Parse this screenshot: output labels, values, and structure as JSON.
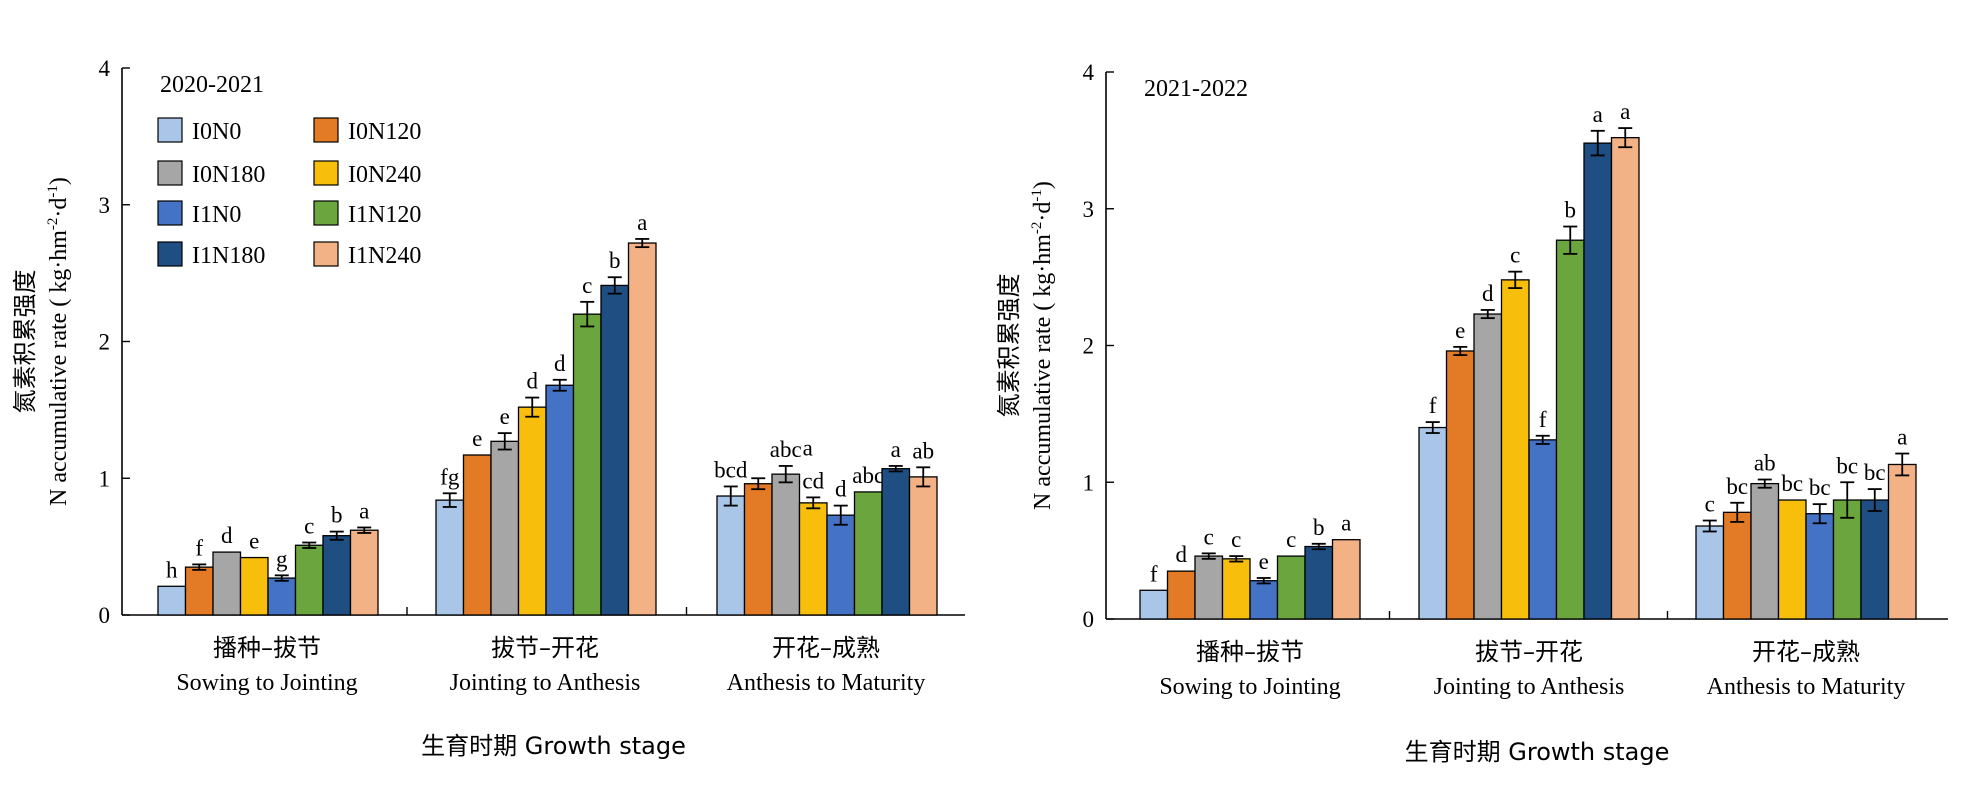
{
  "colors": {
    "I0N0": "#a9c6e8",
    "I0N120": "#e37b26",
    "I0N180": "#a6a6a6",
    "I0N240": "#f7bf0b",
    "I1N0": "#4472c4",
    "I1N120": "#6aa63d",
    "I1N180": "#1e4e82",
    "I1N240": "#f2b285"
  },
  "chart_data": [
    {
      "type": "bar",
      "panel_label": "2020-2021",
      "ylabel_cn": "氮素积累强度",
      "ylabel_en_main": "N accumulative rate ( kg·hm",
      "ylabel_en_sup1": "-2",
      "ylabel_en_mid": "·d",
      "ylabel_en_sup2": "-1",
      "ylabel_en_end": ")",
      "xlabel": "生育时期  Growth stage",
      "ylim": [
        0,
        4
      ],
      "yticks": [
        "0",
        "1",
        "2",
        "3",
        "4"
      ],
      "categories": [
        {
          "cn": "播种–拔节",
          "en": "Sowing to Jointing"
        },
        {
          "cn": "拔节–开花",
          "en": "Jointing to Anthesis"
        },
        {
          "cn": "开花–成熟",
          "en": "Anthesis to Maturity"
        }
      ],
      "legend": "top-left",
      "series": [
        {
          "name": "I0N0",
          "values": [
            0.21,
            0.84,
            0.87
          ],
          "errors": [
            0.0,
            0.05,
            0.07
          ],
          "letters": [
            "h",
            "fg",
            "bcd"
          ]
        },
        {
          "name": "I0N120",
          "values": [
            0.35,
            1.17,
            0.96
          ],
          "errors": [
            0.02,
            0.0,
            0.04
          ],
          "letters": [
            "f",
            "e",
            ""
          ]
        },
        {
          "name": "I0N180",
          "values": [
            0.46,
            1.27,
            1.03
          ],
          "errors": [
            0.0,
            0.06,
            0.06
          ],
          "letters": [
            "d",
            "e",
            "abc"
          ]
        },
        {
          "name": "I0N240",
          "values": [
            0.42,
            1.52,
            0.82
          ],
          "errors": [
            0.0,
            0.07,
            0.04
          ],
          "letters": [
            "e",
            "d",
            "cd"
          ]
        },
        {
          "name": "I1N0",
          "values": [
            0.27,
            1.68,
            0.73
          ],
          "errors": [
            0.02,
            0.04,
            0.07
          ],
          "letters": [
            "g",
            "d",
            "d"
          ]
        },
        {
          "name": "I1N120",
          "values": [
            0.51,
            2.2,
            0.9
          ],
          "errors": [
            0.02,
            0.09,
            0.0
          ],
          "letters": [
            "c",
            "c",
            "abc"
          ]
        },
        {
          "name": "I1N180",
          "values": [
            0.58,
            2.41,
            1.07
          ],
          "errors": [
            0.03,
            0.06,
            0.02
          ],
          "letters": [
            "b",
            "b",
            "a"
          ]
        },
        {
          "name": "I1N240",
          "values": [
            0.62,
            2.72,
            1.01
          ],
          "errors": [
            0.02,
            0.03,
            0.07
          ],
          "letters": [
            "a",
            "a",
            "ab"
          ]
        }
      ],
      "extra_labels": [
        {
          "text": "a",
          "category": 2,
          "series": 2,
          "value": 1.1
        }
      ]
    },
    {
      "type": "bar",
      "panel_label": "2021-2022",
      "ylabel_cn": "氮素积累强度",
      "ylabel_en_main": "N accumulative rate ( kg·hm",
      "ylabel_en_sup1": "-2",
      "ylabel_en_mid": "·d",
      "ylabel_en_sup2": "-1",
      "ylabel_en_end": ")",
      "xlabel": "生育时期  Growth stage",
      "ylim": [
        0,
        4
      ],
      "yticks": [
        "0",
        "1",
        "2",
        "3",
        "4"
      ],
      "categories": [
        {
          "cn": "播种–拔节",
          "en": "Sowing to Jointing"
        },
        {
          "cn": "拔节–开花",
          "en": "Jointing to Anthesis"
        },
        {
          "cn": "开花–成熟",
          "en": "Anthesis to Maturity"
        }
      ],
      "legend": "none",
      "series": [
        {
          "name": "I0N0",
          "values": [
            0.21,
            1.4,
            0.68
          ],
          "errors": [
            0.0,
            0.04,
            0.04
          ],
          "letters": [
            "f",
            "f",
            "c"
          ]
        },
        {
          "name": "I0N120",
          "values": [
            0.35,
            1.96,
            0.78
          ],
          "errors": [
            0.0,
            0.03,
            0.07
          ],
          "letters": [
            "d",
            "e",
            "bc"
          ]
        },
        {
          "name": "I0N180",
          "values": [
            0.46,
            2.23,
            0.99
          ],
          "errors": [
            0.02,
            0.03,
            0.03
          ],
          "letters": [
            "c",
            "d",
            "ab"
          ]
        },
        {
          "name": "I0N240",
          "values": [
            0.44,
            2.48,
            0.87
          ],
          "errors": [
            0.02,
            0.06,
            0.0
          ],
          "letters": [
            "c",
            "c",
            "bc"
          ]
        },
        {
          "name": "I1N0",
          "values": [
            0.28,
            1.31,
            0.77
          ],
          "errors": [
            0.02,
            0.03,
            0.07
          ],
          "letters": [
            "e",
            "f",
            "bc"
          ]
        },
        {
          "name": "I1N120",
          "values": [
            0.46,
            2.77,
            0.87
          ],
          "errors": [
            0.0,
            0.1,
            0.13
          ],
          "letters": [
            "c",
            "b",
            "bc"
          ]
        },
        {
          "name": "I1N180",
          "values": [
            0.53,
            3.48,
            0.87
          ],
          "errors": [
            0.02,
            0.09,
            0.08
          ],
          "letters": [
            "b",
            "a",
            "bc"
          ]
        },
        {
          "name": "I1N240",
          "values": [
            0.58,
            3.52,
            1.13
          ],
          "errors": [
            0.0,
            0.07,
            0.08
          ],
          "letters": [
            "a",
            "a",
            "a"
          ]
        }
      ],
      "extra_labels": []
    }
  ]
}
